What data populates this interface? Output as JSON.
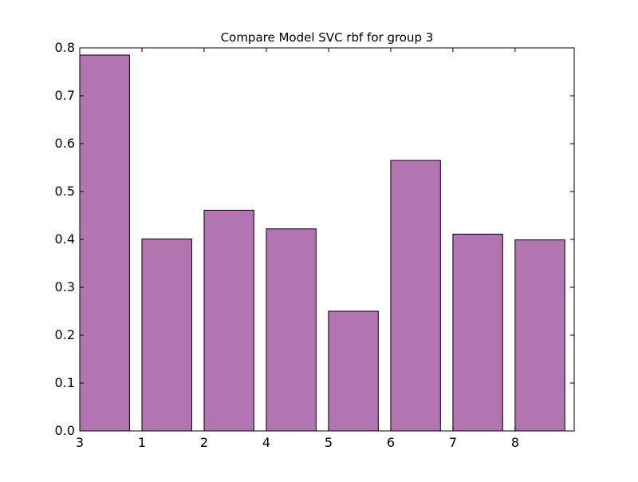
{
  "chart_data": {
    "type": "bar",
    "title": "Compare Model SVC rbf for group 3",
    "xlabel": "",
    "ylabel": "",
    "categories": [
      "3",
      "1",
      "2",
      "4",
      "5",
      "6",
      "7",
      "8"
    ],
    "values": [
      0.785,
      0.401,
      0.461,
      0.422,
      0.25,
      0.565,
      0.411,
      0.399
    ],
    "ylim": [
      0,
      0.8
    ],
    "yticks": [
      "0.0",
      "0.1",
      "0.2",
      "0.3",
      "0.4",
      "0.5",
      "0.6",
      "0.7",
      "0.8"
    ],
    "grid": false,
    "legend": "none",
    "bar_color": "#b275b2",
    "edge_color": "#000000"
  }
}
